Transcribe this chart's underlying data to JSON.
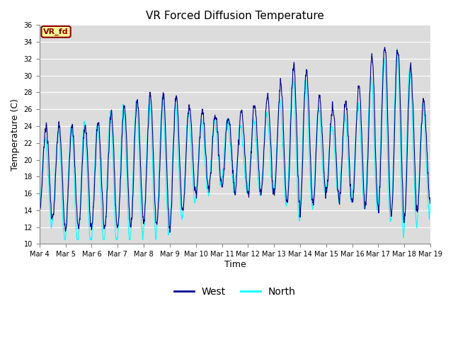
{
  "title": "VR Forced Diffusion Temperature",
  "ylabel": "Temperature (C)",
  "xlabel": "Time",
  "ylim": [
    10,
    36
  ],
  "yticks": [
    10,
    12,
    14,
    16,
    18,
    20,
    22,
    24,
    26,
    28,
    30,
    32,
    34,
    36
  ],
  "west_color": "#00008B",
  "north_color": "#00FFFF",
  "background_color": "#DCDCDC",
  "figure_color": "#FFFFFF",
  "label_box_text": "VR_fd",
  "label_box_bg": "#FFFF99",
  "label_box_fg": "#8B0000",
  "legend_west": "West",
  "legend_north": "North",
  "x_tick_labels": [
    "Mar 4",
    "Mar 5",
    "Mar 6",
    "Mar 7",
    "Mar 8",
    "Mar 9",
    "Mar 10",
    "Mar 11",
    "Mar 12",
    "Mar 13",
    "Mar 14",
    "Mar 15",
    "Mar 16",
    "Mar 17",
    "Mar 18",
    "Mar 19"
  ],
  "n_days": 16,
  "points_per_day": 144
}
